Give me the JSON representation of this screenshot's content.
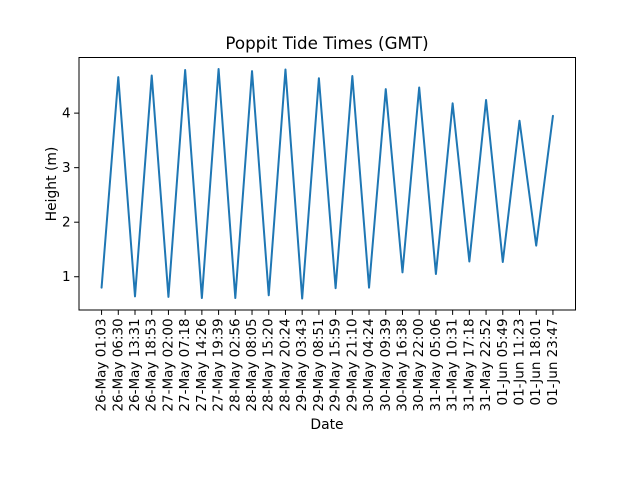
{
  "chart_data": {
    "type": "line",
    "title": "Poppit Tide Times (GMT)",
    "xlabel": "Date",
    "ylabel": "Height (m)",
    "line_color": "#1f77b4",
    "background_color": "#ffffff",
    "grid": false,
    "legend": false,
    "markers": "none",
    "x_tick_rotation": 90,
    "ylim": [
      0.39,
      5.02
    ],
    "yticks": [
      1,
      2,
      3,
      4
    ],
    "ytick_labels": [
      "1",
      "2",
      "3",
      "4"
    ],
    "categories": [
      "26-May 01:03",
      "26-May 06:30",
      "26-May 13:31",
      "26-May 18:53",
      "27-May 02:00",
      "27-May 07:18",
      "27-May 14:26",
      "27-May 19:39",
      "28-May 02:56",
      "28-May 08:05",
      "28-May 15:20",
      "28-May 20:24",
      "29-May 03:43",
      "29-May 08:51",
      "29-May 15:59",
      "29-May 21:10",
      "30-May 04:24",
      "30-May 09:39",
      "30-May 16:38",
      "30-May 22:00",
      "31-May 05:06",
      "31-May 10:31",
      "31-May 17:18",
      "31-May 22:52",
      "01-Jun 05:49",
      "01-Jun 11:23",
      "01-Jun 18:01",
      "01-Jun 23:47"
    ],
    "values": [
      0.8,
      4.66,
      0.64,
      4.69,
      0.63,
      4.79,
      0.61,
      4.81,
      0.61,
      4.77,
      0.66,
      4.8,
      0.6,
      4.64,
      0.79,
      4.68,
      0.8,
      4.44,
      1.08,
      4.47,
      1.05,
      4.18,
      1.28,
      4.24,
      1.27,
      3.86,
      1.57,
      3.95
    ]
  }
}
